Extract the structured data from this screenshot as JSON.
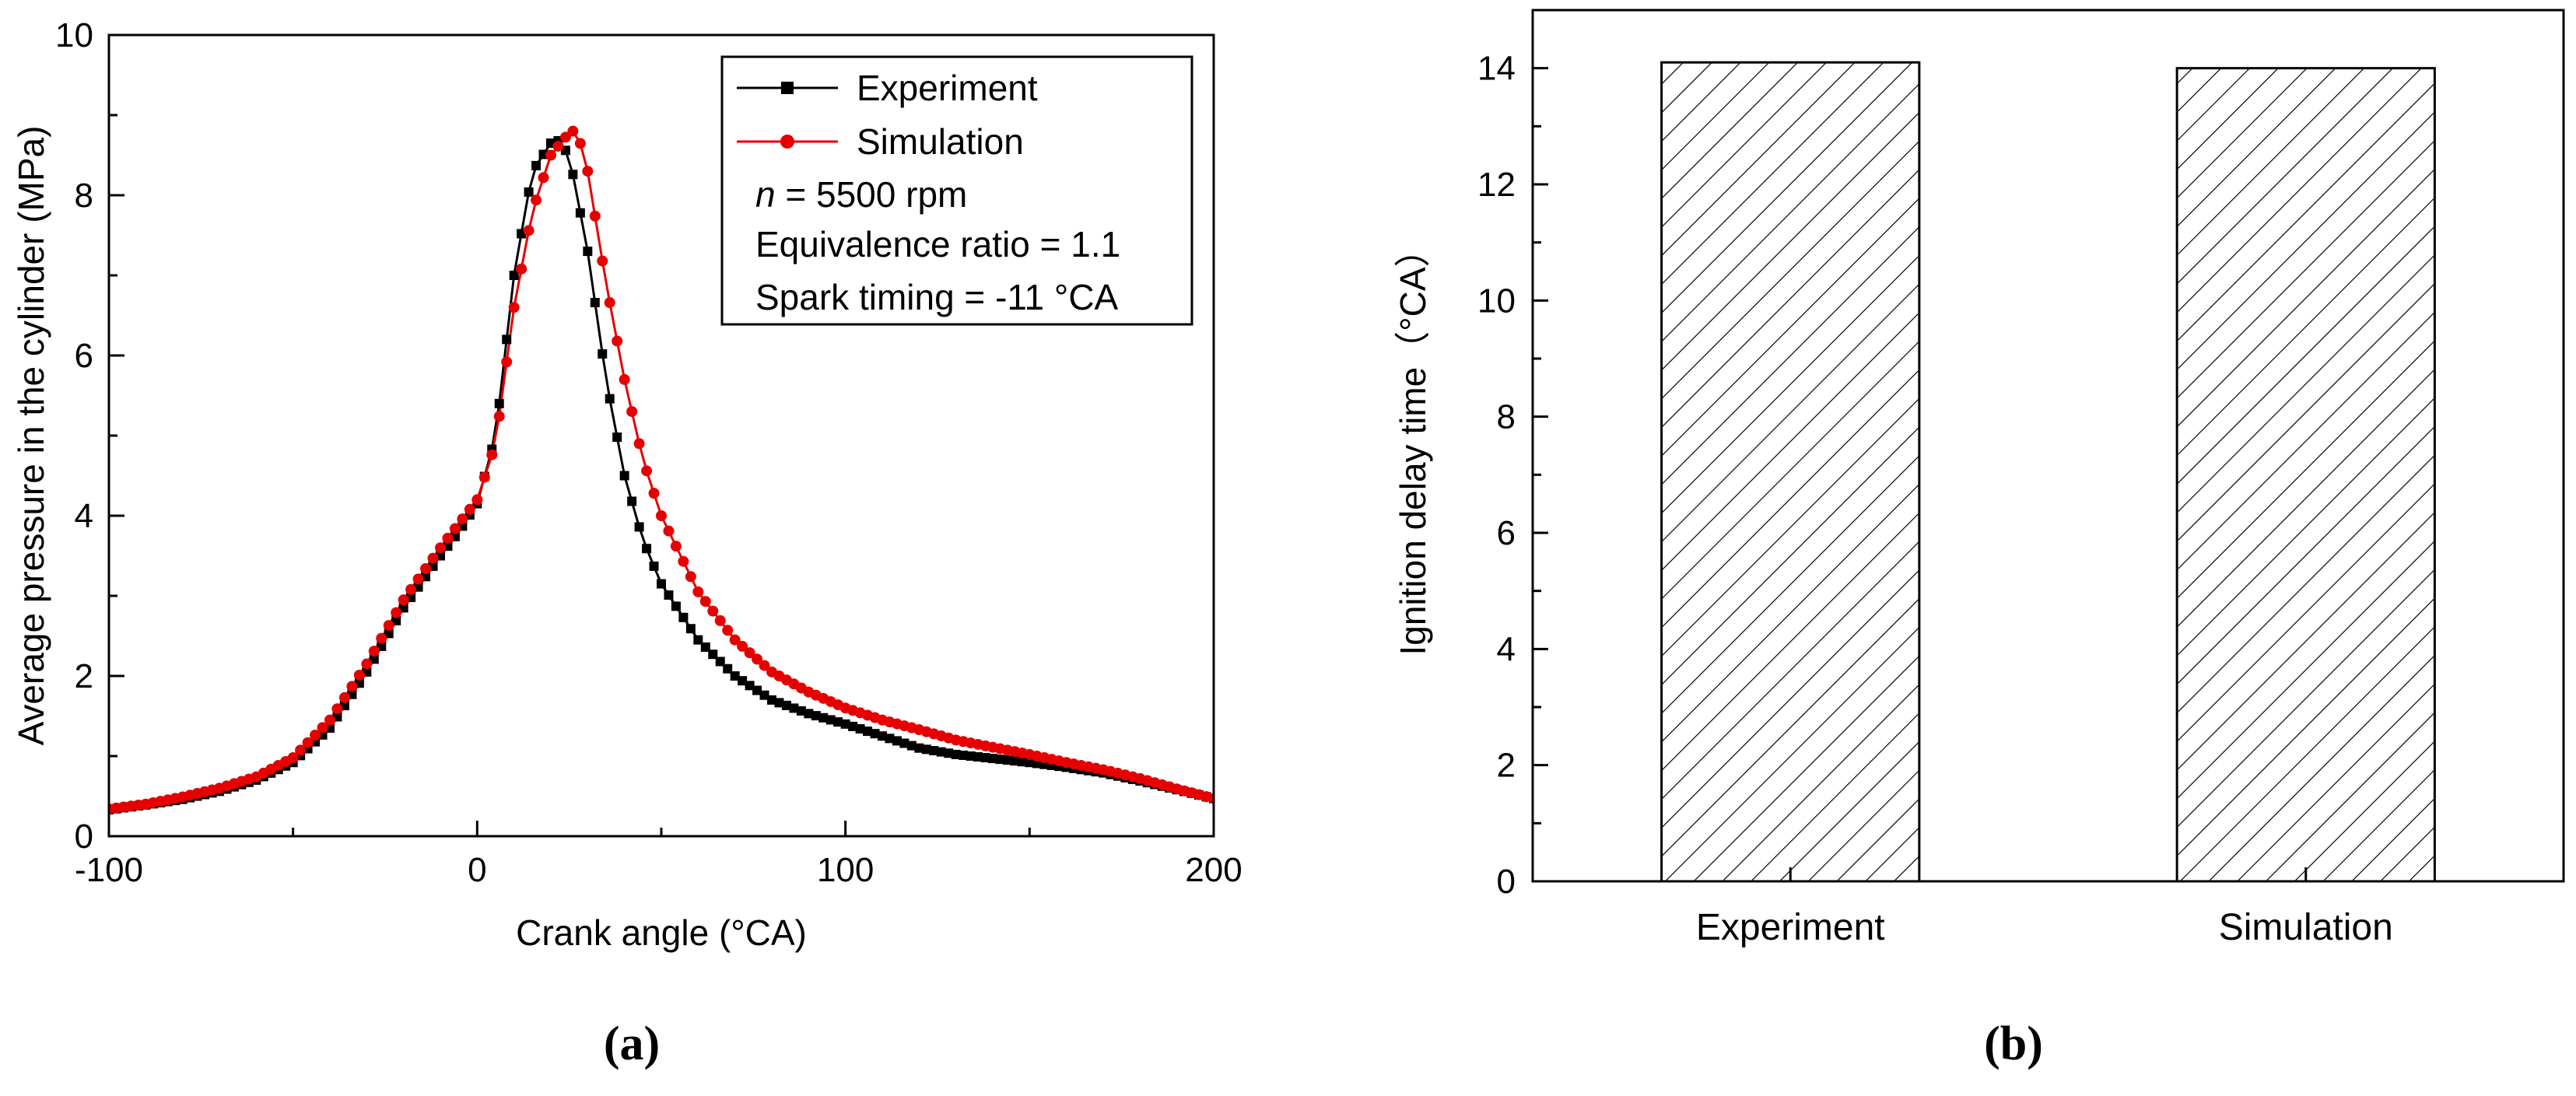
{
  "chart_data": [
    {
      "panel": "a",
      "panel_label": "(a)",
      "type": "line",
      "xlabel": "Crank angle (°CA)",
      "ylabel": "Average pressure in the cylinder (MPa)",
      "xlim": [
        -100,
        200
      ],
      "ylim": [
        0,
        10
      ],
      "xticks": [
        -100,
        0,
        100,
        200
      ],
      "yticks": [
        0,
        2,
        4,
        6,
        8,
        10
      ],
      "legend": {
        "position": "top-right",
        "entries": [
          "Experiment",
          "Simulation"
        ],
        "annotations": [
          "n = 5500 rpm",
          "Equivalence ratio = 1.1",
          "Spark timing = -11 °CA"
        ]
      },
      "series": [
        {
          "name": "Experiment",
          "color": "#000000",
          "marker": "square",
          "x": [
            -100,
            -90,
            -80,
            -70,
            -60,
            -50,
            -40,
            -30,
            -20,
            -10,
            -5,
            0,
            5,
            10,
            15,
            20,
            22,
            25,
            30,
            35,
            40,
            45,
            50,
            60,
            70,
            80,
            90,
            100,
            110,
            120,
            130,
            140,
            150,
            160,
            170,
            180,
            190,
            200
          ],
          "y": [
            0.33,
            0.39,
            0.46,
            0.56,
            0.7,
            0.92,
            1.35,
            2.05,
            2.85,
            3.5,
            3.8,
            4.15,
            5.0,
            7.0,
            8.3,
            8.65,
            8.68,
            8.5,
            7.3,
            5.7,
            4.5,
            3.7,
            3.15,
            2.45,
            2.0,
            1.7,
            1.53,
            1.4,
            1.25,
            1.1,
            1.02,
            0.97,
            0.92,
            0.86,
            0.79,
            0.69,
            0.58,
            0.47
          ]
        },
        {
          "name": "Simulation",
          "color": "#e60000",
          "marker": "circle",
          "x": [
            -100,
            -90,
            -80,
            -70,
            -60,
            -50,
            -40,
            -30,
            -20,
            -10,
            -5,
            0,
            5,
            10,
            15,
            20,
            25,
            27,
            30,
            35,
            40,
            45,
            50,
            60,
            70,
            80,
            90,
            100,
            110,
            120,
            130,
            140,
            150,
            160,
            170,
            180,
            190,
            200
          ],
          "y": [
            0.34,
            0.4,
            0.49,
            0.6,
            0.74,
            0.98,
            1.45,
            2.15,
            2.95,
            3.6,
            3.9,
            4.2,
            4.9,
            6.6,
            7.8,
            8.5,
            8.78,
            8.82,
            8.3,
            6.9,
            5.7,
            4.7,
            4.0,
            3.05,
            2.45,
            2.05,
            1.8,
            1.6,
            1.45,
            1.33,
            1.2,
            1.11,
            1.02,
            0.92,
            0.83,
            0.72,
            0.59,
            0.47
          ]
        }
      ]
    },
    {
      "panel": "b",
      "panel_label": "(b)",
      "type": "bar",
      "xlabel": "",
      "ylabel": "Ignition delay time（°CA）",
      "ylim": [
        0,
        15
      ],
      "yticks": [
        0,
        2,
        4,
        6,
        8,
        10,
        12,
        14
      ],
      "categories": [
        "Experiment",
        "Simulation"
      ],
      "values": [
        14.1,
        14.0
      ],
      "fill": "diagonal-hatch"
    }
  ]
}
